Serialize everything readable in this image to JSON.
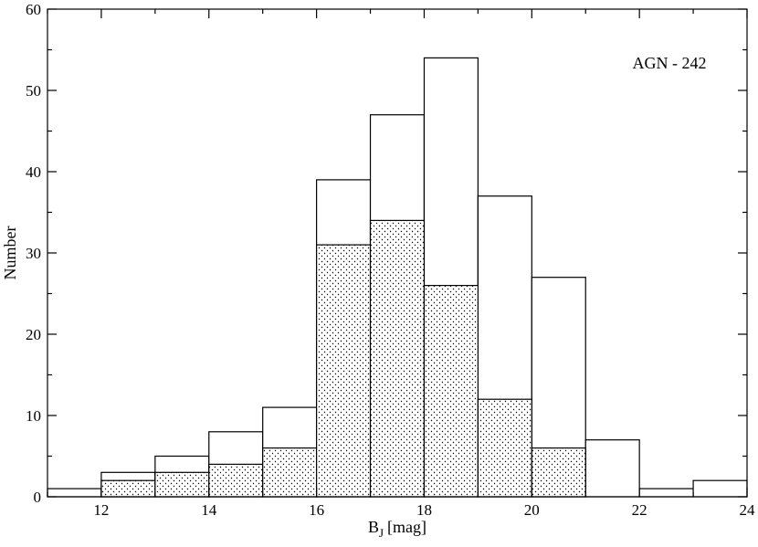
{
  "chart_data": {
    "type": "bar",
    "title": "",
    "annotation": "AGN - 242",
    "xlabel_main": "B",
    "xlabel_sub": "J",
    "xlabel_unit": "[mag]",
    "ylabel": "Number",
    "xlim": [
      11,
      24
    ],
    "ylim": [
      0,
      60
    ],
    "xticks": [
      12,
      14,
      16,
      18,
      20,
      22,
      24
    ],
    "yticks": [
      0,
      10,
      20,
      30,
      40,
      50,
      60
    ],
    "grid": false,
    "bin_edges": [
      11,
      12,
      13,
      14,
      15,
      16,
      17,
      18,
      19,
      20,
      21,
      22,
      23,
      24
    ],
    "series": [
      {
        "fill": "none",
        "values": [
          1,
          3,
          5,
          8,
          11,
          39,
          47,
          54,
          37,
          27,
          7,
          1,
          2
        ]
      },
      {
        "fill": "dotted",
        "values": [
          0,
          2,
          3,
          4,
          6,
          31,
          34,
          26,
          12,
          6,
          0,
          0,
          0
        ]
      }
    ]
  }
}
